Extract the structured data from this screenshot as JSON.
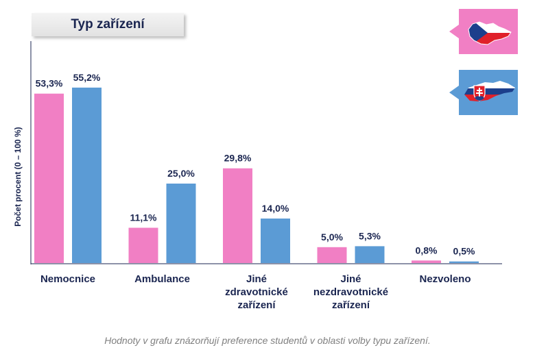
{
  "chart_data": {
    "type": "bar",
    "title": "Typ zařízení",
    "ylabel": "Počet procent  (0 – 100 %)",
    "ylim": [
      0,
      60
    ],
    "categories": [
      "Nemocnice",
      "Ambulance",
      "Jiné\nzdravotnické\nzařízení",
      "Jiné\nnezdravotnické\nzařízení",
      "Nezvoleno"
    ],
    "series": [
      {
        "country": "CZ",
        "color": "#f17fc4",
        "values": [
          53.3,
          11.1,
          29.8,
          5.0,
          0.8
        ],
        "labels": [
          "53,3%",
          "11,1%",
          "29,8%",
          "5,0%",
          "0,8%"
        ]
      },
      {
        "country": "SK",
        "color": "#5b9bd5",
        "values": [
          55.2,
          25.0,
          14.0,
          5.3,
          0.5
        ],
        "labels": [
          "55,2%",
          "25,0%",
          "14,0%",
          "5,3%",
          "0,5%"
        ]
      }
    ]
  },
  "legend_cards": [
    {
      "country": "CZ",
      "card_color": "#f17fc4",
      "map_icon": "czech-map-flag-icon"
    },
    {
      "country": "SK",
      "card_color": "#5b9bd5",
      "map_icon": "slovak-map-flag-icon"
    }
  ],
  "footnote": "Hodnoty v grafu znázorňují preference studentů v oblasti volby typu zařízení."
}
